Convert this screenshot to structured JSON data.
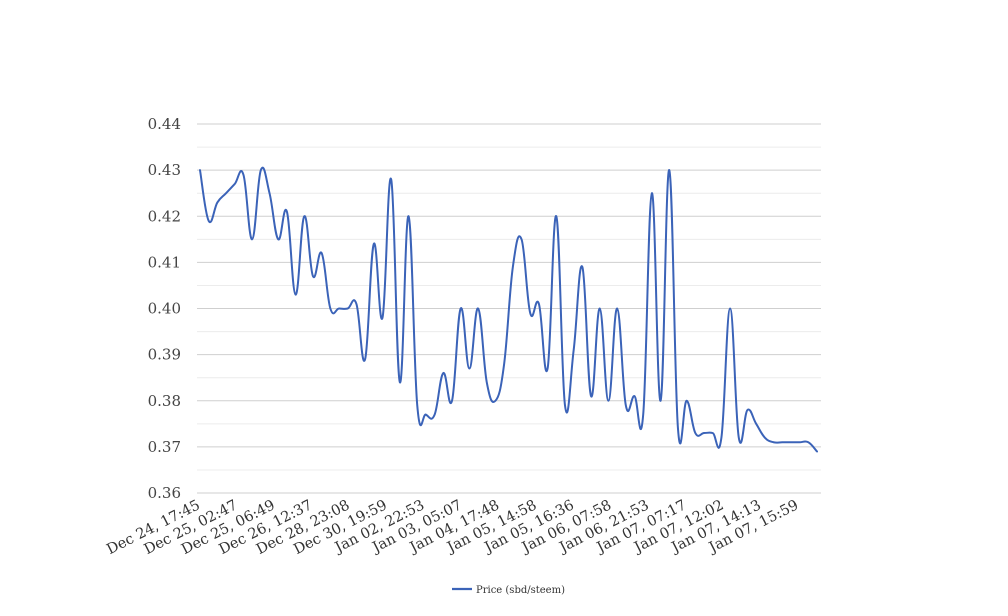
{
  "chart_data": {
    "type": "line",
    "title": "",
    "xlabel": "",
    "ylabel": "",
    "ylim": [
      0.36,
      0.44
    ],
    "yticks": [
      "0.36",
      "0.37",
      "0.38",
      "0.39",
      "0.40",
      "0.41",
      "0.42",
      "0.43",
      "0.44"
    ],
    "grid": true,
    "legend_position": "bottom",
    "x_tick_labels": [
      "Dec 24, 17:45",
      "Dec 25, 02:47",
      "Dec 25, 06:49",
      "Dec 26, 12:37",
      "Dec 28, 23:08",
      "Dec 30, 19:59",
      "Jan 02, 22:53",
      "Jan 03, 05:07",
      "Jan 04, 17:48",
      "Jan 05, 14:58",
      "Jan 05, 16:36",
      "Jan 06, 07:58",
      "Jan 06, 21:53",
      "Jan 07, 07:17",
      "Jan 07, 12:02",
      "Jan 07, 14:13",
      "Jan 07, 15:59"
    ],
    "series": [
      {
        "name": "Price (sbd/steem)",
        "color": "#3b63b8",
        "values": [
          0.43,
          0.419,
          0.423,
          0.425,
          0.427,
          0.429,
          0.415,
          0.43,
          0.425,
          0.415,
          0.421,
          0.403,
          0.42,
          0.407,
          0.412,
          0.4,
          0.4,
          0.4,
          0.401,
          0.389,
          0.414,
          0.398,
          0.428,
          0.384,
          0.42,
          0.379,
          0.377,
          0.377,
          0.386,
          0.38,
          0.4,
          0.387,
          0.4,
          0.384,
          0.38,
          0.388,
          0.409,
          0.415,
          0.399,
          0.401,
          0.387,
          0.42,
          0.379,
          0.391,
          0.409,
          0.381,
          0.4,
          0.38,
          0.4,
          0.379,
          0.381,
          0.377,
          0.425,
          0.38,
          0.43,
          0.374,
          0.38,
          0.373,
          0.373,
          0.373,
          0.372,
          0.4,
          0.372,
          0.378,
          0.375,
          0.372,
          0.371,
          0.371,
          0.371,
          0.371,
          0.371,
          0.369
        ]
      }
    ]
  }
}
